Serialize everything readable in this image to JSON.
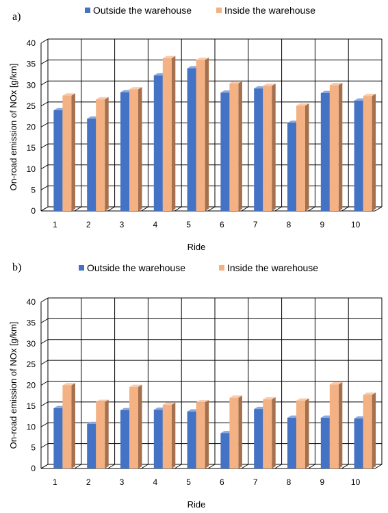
{
  "colors": {
    "outside": "#4472C4",
    "outside_side": "#2F528F",
    "outside_top": "#8EA9DB",
    "inside": "#F4B183",
    "inside_side": "#A5704D",
    "inside_top": "#F8CBAD",
    "grid": "#000000"
  },
  "chart_data": [
    {
      "panel_label": "a)",
      "type": "bar",
      "categories": [
        "1",
        "2",
        "3",
        "4",
        "5",
        "6",
        "7",
        "8",
        "9",
        "10"
      ],
      "series": [
        {
          "name": "Outside the warehouse",
          "values": [
            24,
            22,
            28.3,
            32.3,
            34,
            28.2,
            29.2,
            21,
            28.1,
            26.3
          ]
        },
        {
          "name": "Inside the warehouse",
          "values": [
            27.5,
            26.6,
            29,
            36.4,
            36,
            30.4,
            29.8,
            25.1,
            30,
            27.4
          ]
        }
      ],
      "xlabel": "Ride",
      "ylabel": "On-road emission of NOx [g/km]",
      "ylim": [
        0,
        40
      ],
      "yticks": [
        "0",
        "5",
        "10",
        "15",
        "20",
        "25",
        "30",
        "35",
        "40"
      ],
      "grid": true,
      "legend_position": "top"
    },
    {
      "panel_label": "b)",
      "type": "bar",
      "categories": [
        "1",
        "2",
        "3",
        "4",
        "5",
        "6",
        "7",
        "8",
        "9",
        "10"
      ],
      "series": [
        {
          "name": "Outside the warehouse",
          "values": [
            14.5,
            10.7,
            14,
            14.1,
            13.7,
            8.5,
            14.3,
            12.2,
            12.2,
            12
          ]
        },
        {
          "name": "Inside the warehouse",
          "values": [
            20,
            16,
            19.6,
            15.3,
            15.9,
            17,
            16.6,
            16.3,
            20.2,
            17.7
          ]
        }
      ],
      "xlabel": "Ride",
      "ylabel": "On-road emission of NOx [g/km]",
      "ylim": [
        0,
        40
      ],
      "yticks": [
        "0",
        "5",
        "10",
        "15",
        "20",
        "25",
        "30",
        "35",
        "40"
      ],
      "grid": true,
      "legend_position": "top"
    }
  ]
}
